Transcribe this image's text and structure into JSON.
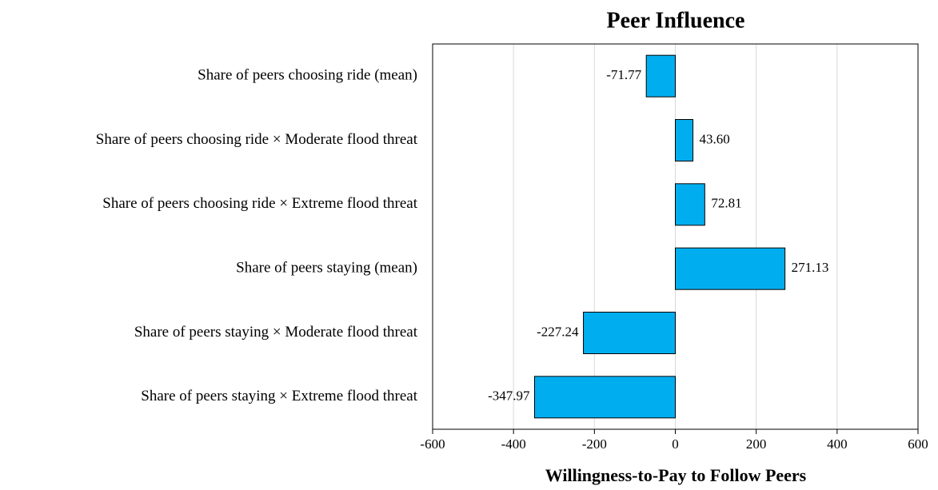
{
  "chart_data": {
    "type": "barh",
    "title": "Peer Influence",
    "xlabel": "Willingness-to-Pay to Follow Peers",
    "categories": [
      "Share of peers choosing ride (mean)",
      "Share of peers choosing ride × Moderate flood threat",
      "Share of peers choosing ride × Extreme flood threat",
      "Share of peers staying (mean)",
      "Share of peers staying × Moderate flood threat",
      "Share of peers staying × Extreme flood threat"
    ],
    "values": [
      -71.77,
      43.6,
      72.81,
      271.13,
      -227.24,
      -347.97
    ],
    "value_labels": [
      "-71.77",
      "43.60",
      "72.81",
      "271.13",
      "-227.24",
      "-347.97"
    ],
    "color": "#00aeef",
    "xlim": [
      -600,
      600
    ],
    "xticks": [
      -600,
      -400,
      -200,
      0,
      200,
      400,
      600
    ],
    "grid": true
  }
}
